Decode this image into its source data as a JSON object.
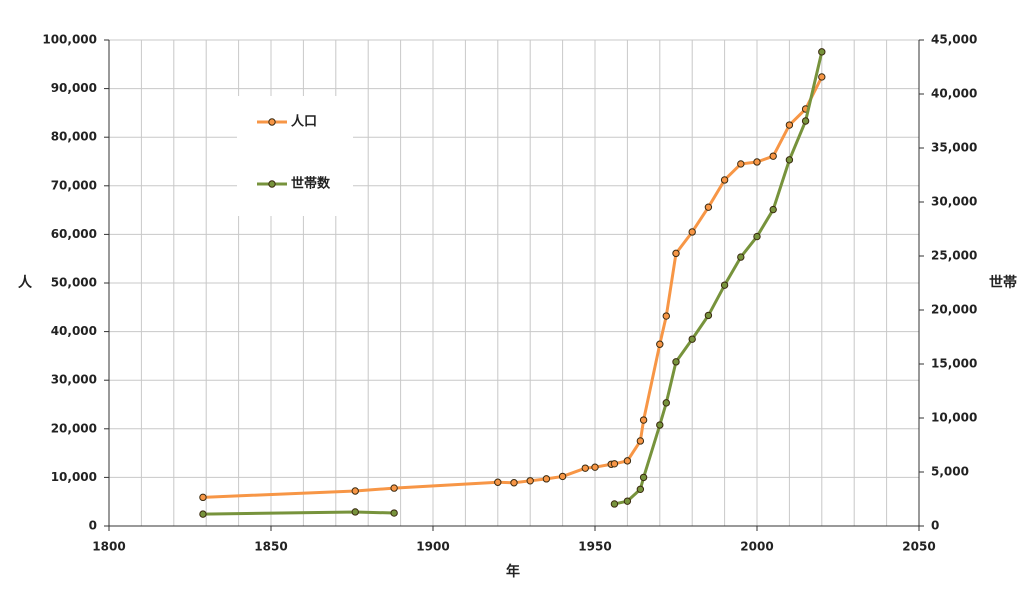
{
  "chart_data": {
    "type": "line",
    "x_label": "年",
    "y_label": "人",
    "y2_label": "世帯",
    "x": [
      1829,
      1876,
      1888,
      1920,
      1925,
      1930,
      1935,
      1940,
      1947,
      1950,
      1955,
      1956,
      1960,
      1964,
      1965,
      1970,
      1972,
      1975,
      1980,
      1985,
      1990,
      1995,
      2000,
      2005,
      2010,
      2015,
      2020
    ],
    "series": [
      {
        "name": "人口",
        "color": "#f79646",
        "values": [
          5900,
          7200,
          7800,
          9000,
          8900,
          9300,
          9700,
          10200,
          11900,
          12100,
          12700,
          12800,
          13400,
          17500,
          21800,
          37400,
          43200,
          56100,
          60500,
          65600,
          71200,
          74500,
          74900,
          76100,
          82500,
          85800,
          92400
        ]
      },
      {
        "name": "世帯数",
        "color": "#77933c",
        "axis": "y2",
        "values": [
          1100,
          1300,
          1200,
          null,
          null,
          null,
          null,
          null,
          null,
          null,
          null,
          2040,
          2300,
          3400,
          4500,
          9350,
          11400,
          15200,
          17300,
          19500,
          22300,
          24900,
          26800,
          29300,
          33900,
          37500,
          43900
        ]
      }
    ],
    "xlim": [
      1800,
      2050
    ],
    "xticks": [
      1800,
      1850,
      1900,
      1950,
      2000,
      2050
    ],
    "xminorticks": [
      1810,
      1820,
      1830,
      1840,
      1860,
      1870,
      1880,
      1890,
      1910,
      1920,
      1930,
      1940,
      1960,
      1970,
      1980,
      1990,
      2010,
      2020,
      2030,
      2040
    ],
    "ylim": [
      0,
      100000
    ],
    "yticks": [
      0,
      {
        "value": 10000,
        "label": "10,000"
      },
      {
        "value": 20000,
        "label": "20,000"
      },
      {
        "value": 30000,
        "label": "30,000"
      },
      {
        "value": 40000,
        "label": "40,000"
      },
      {
        "value": 50000,
        "label": "50,000"
      },
      {
        "value": 60000,
        "label": "60,000"
      },
      {
        "value": 70000,
        "label": "70,000"
      },
      {
        "value": 80000,
        "label": "80,000"
      },
      {
        "value": 90000,
        "label": "90,000"
      },
      {
        "value": 100000,
        "label": "100,000"
      }
    ],
    "y2lim": [
      0,
      45000
    ],
    "y2ticks": [
      0,
      {
        "value": 5000,
        "label": "5,000"
      },
      {
        "value": 10000,
        "label": "10,000"
      },
      {
        "value": 15000,
        "label": "15,000"
      },
      {
        "value": 20000,
        "label": "20,000"
      },
      {
        "value": 25000,
        "label": "25,000"
      },
      {
        "value": 30000,
        "label": "30,000"
      },
      {
        "value": 35000,
        "label": "35,000"
      },
      {
        "value": 40000,
        "label": "40,000"
      },
      {
        "value": 45000,
        "label": "45,000"
      }
    ],
    "grid": true
  }
}
